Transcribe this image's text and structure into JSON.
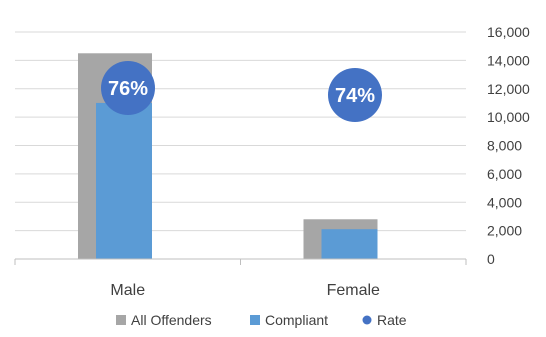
{
  "chart_data": {
    "type": "bar",
    "categories": [
      "Male",
      "Female"
    ],
    "series": [
      {
        "name": "All Offenders",
        "values": [
          14500,
          2800
        ],
        "color": "#a6a6a6"
      },
      {
        "name": "Compliant",
        "values": [
          11000,
          2100
        ],
        "color": "#5b9bd5"
      }
    ],
    "rate": {
      "name": "Rate",
      "labels": [
        "76%",
        "74%"
      ],
      "color": "#4472c4"
    },
    "y_ticks": [
      "16,000",
      "14,000",
      "12,000",
      "10,000",
      "8,000",
      "6,000",
      "4,000",
      "2,000",
      "0"
    ],
    "ylim": [
      0,
      16000
    ],
    "y_axis_side": "right",
    "grid": true,
    "legend_position": "bottom",
    "title": "",
    "xlabel": "",
    "ylabel": ""
  }
}
